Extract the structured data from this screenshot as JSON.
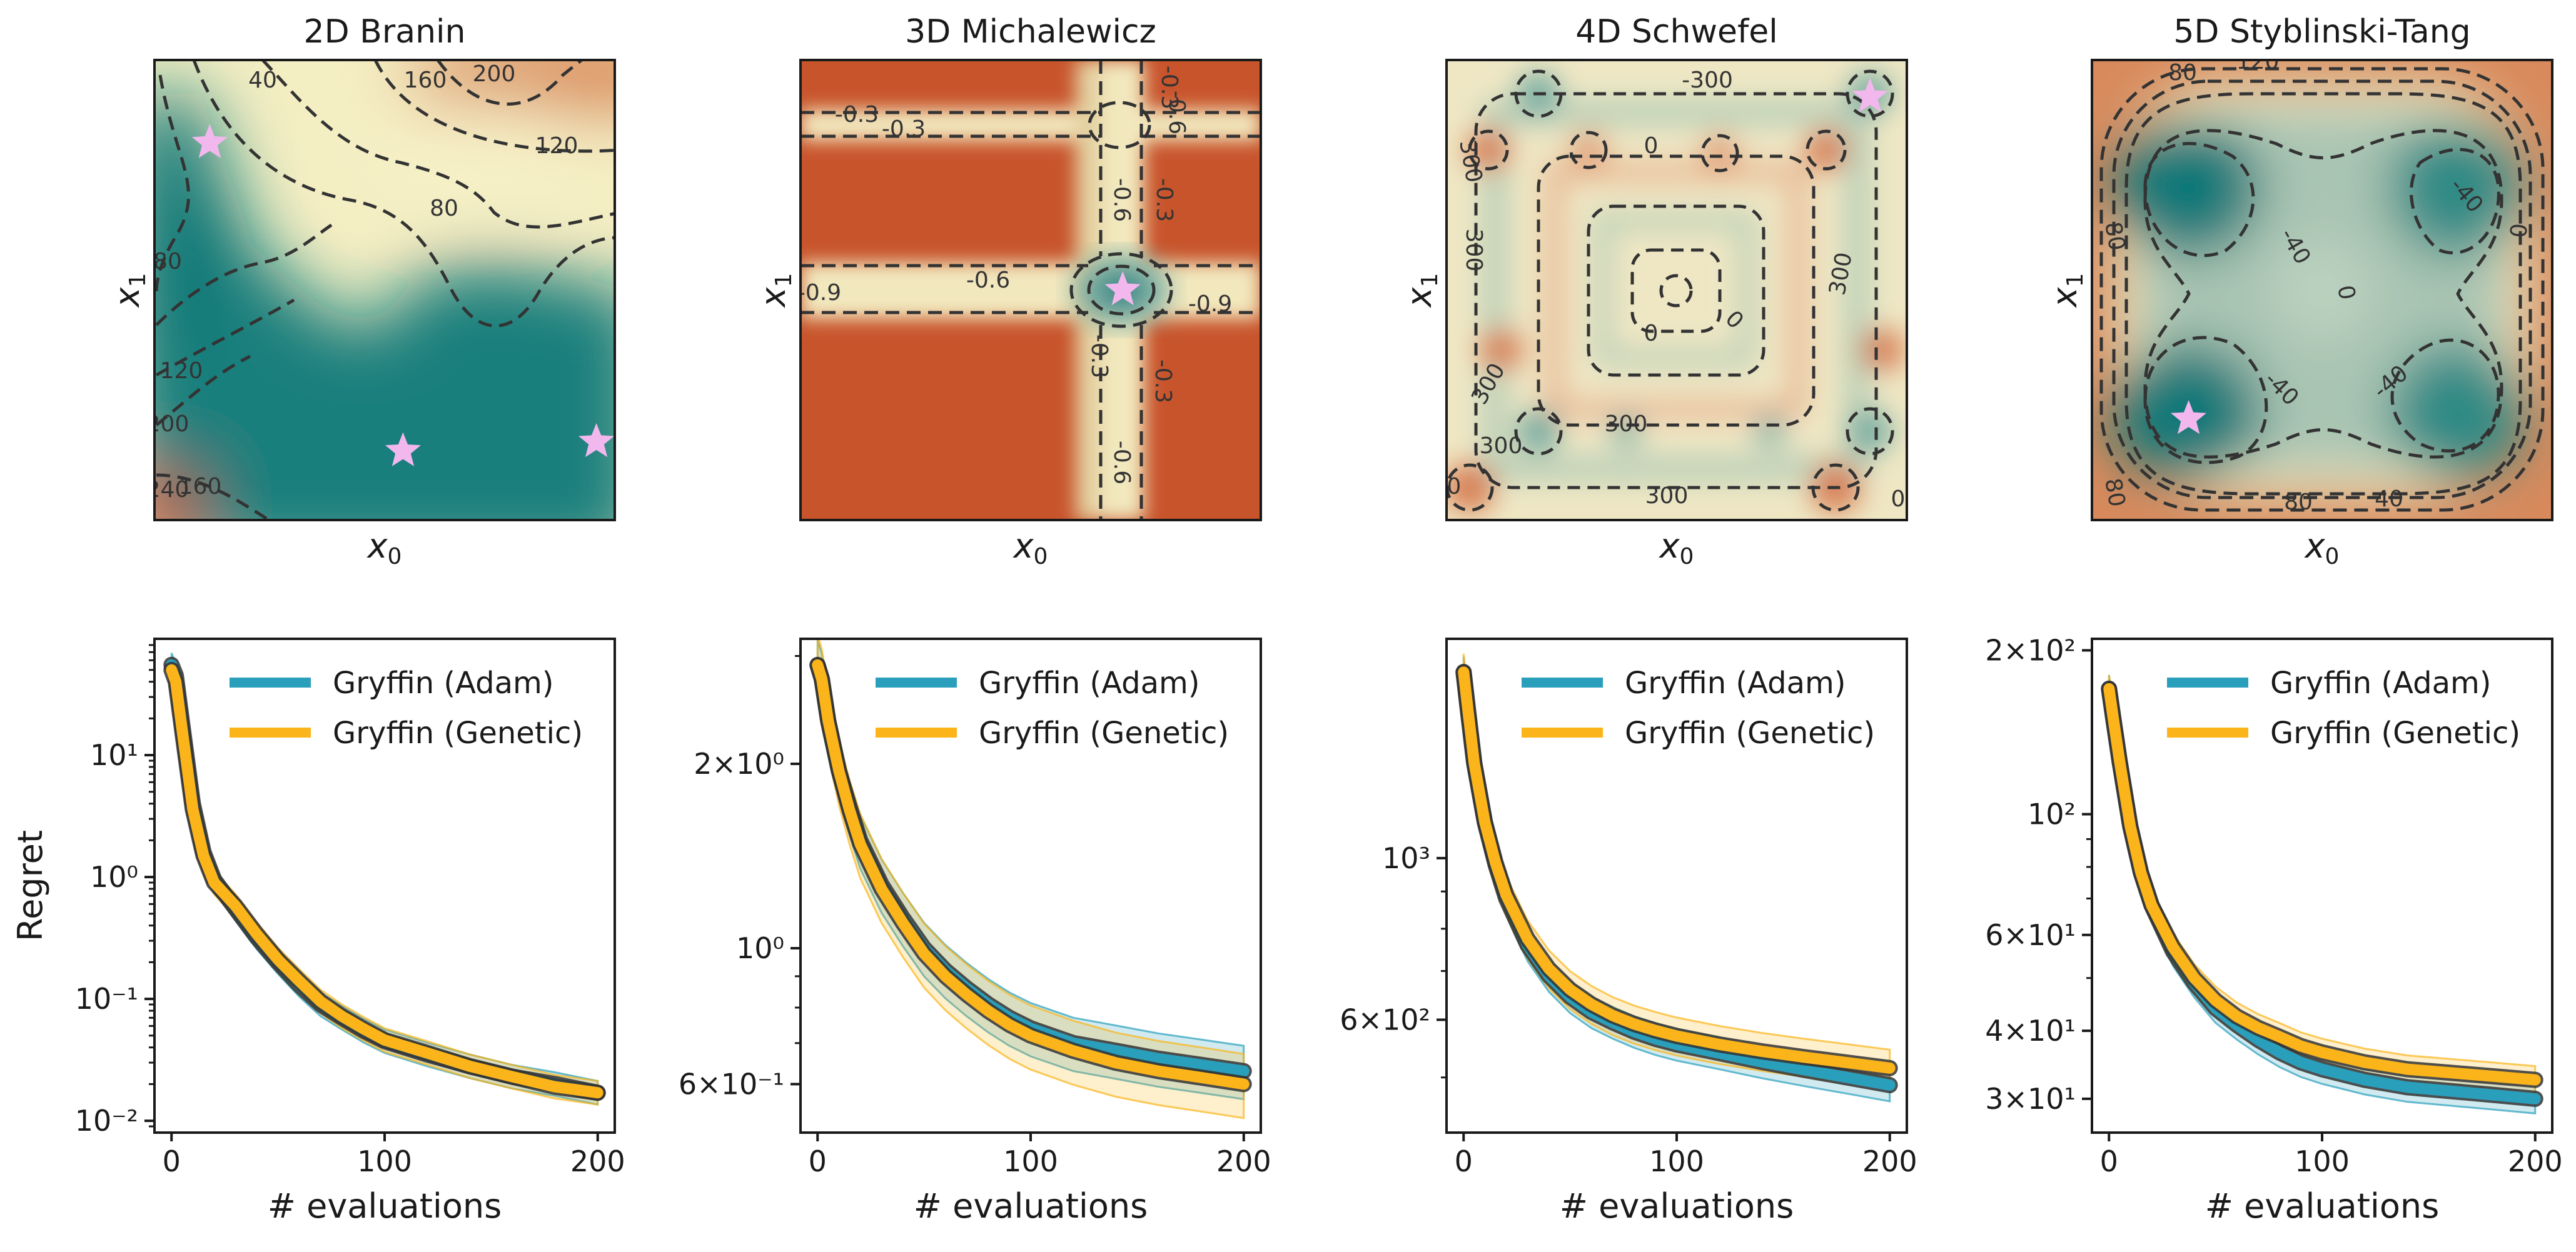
{
  "colors": {
    "adam": "#2a9fbc",
    "genetic": "#fbb51a",
    "star": "#f2b8ee",
    "surface_low": "#0c7878",
    "surface_mid": "#f4eec3",
    "surface_high": "#c8542c",
    "contour": "#333333"
  },
  "chart_data": [
    {
      "type": "heatmap",
      "title": "2D Branin",
      "xlabel": "x₀",
      "ylabel": "x₁",
      "contour_labels": [
        "200",
        "160",
        "120",
        "80",
        "40",
        "80",
        "120",
        "200",
        "160",
        "240"
      ],
      "optima": [
        [
          0.12,
          0.82
        ],
        [
          0.54,
          0.15
        ],
        [
          0.96,
          0.17
        ]
      ],
      "color_scale": "teal (low) to orange (high)"
    },
    {
      "type": "heatmap",
      "title": "3D Michalewicz",
      "xlabel": "x₀",
      "ylabel": "x₁",
      "contour_labels": [
        "-0.3",
        "-0.3",
        "-0.3",
        "-0.6",
        "-0.6",
        "-0.3",
        "-0.9",
        "-0.6",
        "-0.9",
        "-0.3",
        "-0.3",
        "-0.6"
      ],
      "optima": [
        [
          0.7,
          0.5
        ]
      ],
      "color_scale": "teal (low) to orange (high)"
    },
    {
      "type": "heatmap",
      "title": "4D Schwefel",
      "xlabel": "x₀",
      "ylabel": "x₁",
      "contour_labels": [
        "-300",
        "300",
        "300",
        "300",
        "0",
        "0",
        "0",
        "300",
        "300",
        "300",
        "300",
        "0",
        "0"
      ],
      "optima": [
        [
          0.92,
          0.92
        ]
      ],
      "color_scale": "teal (low) to orange (high)"
    },
    {
      "type": "heatmap",
      "title": "5D Styblinski-Tang",
      "xlabel": "x₀",
      "ylabel": "x₁",
      "contour_labels": [
        "80",
        "120",
        "80",
        "-40",
        "0",
        "-40",
        "0",
        "-40",
        "-40",
        "40",
        "80",
        "80"
      ],
      "optima": [
        [
          0.21,
          0.22
        ]
      ],
      "color_scale": "teal (low) to orange (high)"
    },
    {
      "type": "line",
      "title": "",
      "xlabel": "# evaluations",
      "ylabel": "Regret",
      "y_scale": "log",
      "xlim": [
        -8,
        208
      ],
      "ylim": [
        0.008,
        90
      ],
      "xticks": [
        "0",
        "100",
        "200"
      ],
      "yticks": [
        {
          "v": 10,
          "label": "10^1"
        },
        {
          "v": 1,
          "label": "10^0"
        },
        {
          "v": 0.1,
          "label": "10^−1"
        },
        {
          "v": 0.01,
          "label": "10^−2"
        }
      ],
      "legend": "top-right",
      "series": [
        {
          "name": "Gryffin (Adam)",
          "x": [
            0,
            2,
            5,
            10,
            15,
            20,
            30,
            40,
            50,
            60,
            70,
            80,
            90,
            100,
            120,
            140,
            160,
            180,
            200
          ],
          "y": [
            55,
            45,
            18,
            4.0,
            1.6,
            0.95,
            0.55,
            0.32,
            0.2,
            0.13,
            0.09,
            0.07,
            0.055,
            0.045,
            0.035,
            0.028,
            0.023,
            0.02,
            0.017
          ],
          "band": [
            0.8,
            1.25
          ]
        },
        {
          "name": "Gryffin (Genetic)",
          "x": [
            0,
            2,
            5,
            10,
            15,
            20,
            30,
            40,
            50,
            60,
            70,
            80,
            90,
            100,
            120,
            140,
            160,
            180,
            200
          ],
          "y": [
            50,
            40,
            16,
            3.6,
            1.5,
            0.9,
            0.58,
            0.34,
            0.21,
            0.14,
            0.095,
            0.072,
            0.057,
            0.046,
            0.036,
            0.028,
            0.023,
            0.019,
            0.017
          ],
          "band": [
            0.8,
            1.25
          ]
        }
      ]
    },
    {
      "type": "line",
      "title": "",
      "xlabel": "# evaluations",
      "ylabel": "",
      "y_scale": "log",
      "xlim": [
        -8,
        208
      ],
      "ylim": [
        0.5,
        3.2
      ],
      "xticks": [
        "0",
        "100",
        "200"
      ],
      "yticks": [
        {
          "v": 2,
          "label": "2×10^0"
        },
        {
          "v": 1,
          "label": "10^0"
        },
        {
          "v": 0.6,
          "label": "6×10^−1"
        }
      ],
      "legend": "top-right",
      "series": [
        {
          "name": "Gryffin (Adam)",
          "x": [
            0,
            2,
            5,
            10,
            15,
            20,
            30,
            40,
            50,
            60,
            70,
            80,
            90,
            100,
            120,
            140,
            160,
            180,
            200
          ],
          "y": [
            2.9,
            2.75,
            2.35,
            1.95,
            1.7,
            1.5,
            1.27,
            1.12,
            1.0,
            0.92,
            0.86,
            0.81,
            0.77,
            0.74,
            0.7,
            0.68,
            0.66,
            0.645,
            0.63
          ],
          "band": [
            0.9,
            1.1
          ]
        },
        {
          "name": "Gryffin (Genetic)",
          "x": [
            0,
            2,
            5,
            10,
            15,
            20,
            30,
            40,
            50,
            60,
            70,
            80,
            90,
            100,
            120,
            140,
            160,
            180,
            200
          ],
          "y": [
            2.9,
            2.75,
            2.35,
            1.95,
            1.68,
            1.48,
            1.25,
            1.1,
            0.98,
            0.9,
            0.84,
            0.79,
            0.75,
            0.72,
            0.68,
            0.65,
            0.63,
            0.615,
            0.6
          ],
          "band": [
            0.88,
            1.12
          ]
        }
      ]
    },
    {
      "type": "line",
      "title": "",
      "xlabel": "# evaluations",
      "ylabel": "",
      "y_scale": "log",
      "xlim": [
        -8,
        208
      ],
      "ylim": [
        420,
        2000
      ],
      "xticks": [
        "0",
        "100",
        "200"
      ],
      "yticks": [
        {
          "v": 1000,
          "label": "10^3"
        },
        {
          "v": 600,
          "label": "6×10^2"
        }
      ],
      "legend": "top-right",
      "series": [
        {
          "name": "Gryffin (Adam)",
          "x": [
            0,
            2,
            5,
            10,
            15,
            20,
            30,
            40,
            50,
            60,
            70,
            80,
            90,
            100,
            120,
            140,
            160,
            180,
            200
          ],
          "y": [
            1800,
            1600,
            1350,
            1120,
            980,
            880,
            760,
            690,
            645,
            615,
            595,
            578,
            565,
            555,
            540,
            525,
            512,
            500,
            488
          ],
          "band": [
            0.95,
            1.05
          ]
        },
        {
          "name": "Gryffin (Genetic)",
          "x": [
            0,
            2,
            5,
            10,
            15,
            20,
            30,
            40,
            50,
            60,
            70,
            80,
            90,
            100,
            120,
            140,
            160,
            180,
            200
          ],
          "y": [
            1800,
            1600,
            1350,
            1120,
            985,
            890,
            775,
            705,
            660,
            630,
            608,
            592,
            580,
            570,
            555,
            543,
            533,
            524,
            515
          ],
          "band": [
            0.94,
            1.06
          ]
        }
      ]
    },
    {
      "type": "line",
      "title": "",
      "xlabel": "# evaluations",
      "ylabel": "",
      "y_scale": "log",
      "xlim": [
        -8,
        208
      ],
      "ylim": [
        26,
        210
      ],
      "xticks": [
        "0",
        "100",
        "200"
      ],
      "yticks": [
        {
          "v": 200,
          "label": "2×10^2"
        },
        {
          "v": 100,
          "label": "10^2"
        },
        {
          "v": 60,
          "label": "6×10^1"
        },
        {
          "v": 40,
          "label": "4×10^1"
        },
        {
          "v": 30,
          "label": "3×10^1"
        }
      ],
      "legend": "top-right",
      "series": [
        {
          "name": "Gryffin (Adam)",
          "x": [
            0,
            2,
            5,
            10,
            15,
            20,
            30,
            40,
            50,
            60,
            70,
            80,
            90,
            100,
            120,
            140,
            160,
            180,
            200
          ],
          "y": [
            170,
            150,
            125,
            95,
            78,
            68,
            56,
            49,
            44,
            41,
            38.5,
            36.5,
            35,
            34,
            32.5,
            31.5,
            31,
            30.5,
            30
          ],
          "band": [
            0.94,
            1.06
          ]
        },
        {
          "name": "Gryffin (Genetic)",
          "x": [
            0,
            2,
            5,
            10,
            15,
            20,
            30,
            40,
            50,
            60,
            70,
            80,
            90,
            100,
            120,
            140,
            160,
            180,
            200
          ],
          "y": [
            170,
            150,
            125,
            95,
            78,
            68,
            57,
            50,
            45.5,
            42.5,
            40.5,
            39,
            37.5,
            36.5,
            35,
            34,
            33.5,
            33,
            32.5
          ],
          "band": [
            0.94,
            1.06
          ]
        }
      ]
    }
  ]
}
